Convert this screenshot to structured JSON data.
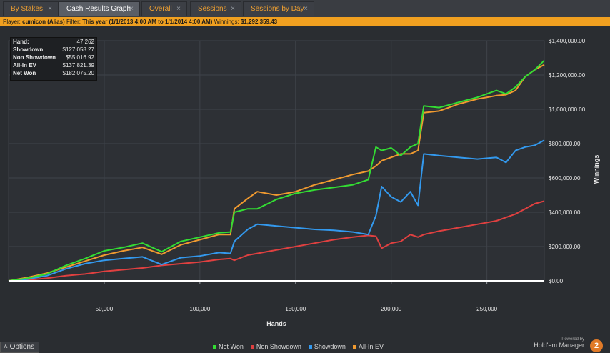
{
  "tabs": [
    {
      "label": "By Stakes",
      "close": "×"
    },
    {
      "label": "Cash Results Graph",
      "close": "×"
    },
    {
      "label": "Overall",
      "close": "×"
    },
    {
      "label": "Sessions",
      "close": "×"
    },
    {
      "label": "Sessions by Day",
      "close": "×"
    }
  ],
  "filter": {
    "player_label": "Player:",
    "player": "cumicon (Alias)",
    "filter_label": "Filter:",
    "filter": "This year (1/1/2013 4:00 AM to 1/1/2014 4:00 AM)",
    "winnings_label": "Winnings:",
    "winnings": "$1,292,359.43"
  },
  "stats": [
    {
      "label": "Hand:",
      "value": "47,262"
    },
    {
      "label": "Showdown",
      "value": "$127,058.27"
    },
    {
      "label": "Non Showdown",
      "value": "$55,016.92"
    },
    {
      "label": "All-In EV",
      "value": "$137,821.39"
    },
    {
      "label": "Net Won",
      "value": "$182,075.20"
    }
  ],
  "options_label": "Options",
  "brand": {
    "powered": "Powered by",
    "name": "Hold'em Manager",
    "badge": "2"
  },
  "colors": {
    "net_won": "#33dd33",
    "non_showdown": "#e04040",
    "showdown": "#3399ee",
    "allin_ev": "#f09a30",
    "accent": "#f0a020"
  },
  "chart_data": {
    "type": "line",
    "xlabel": "Hands",
    "ylabel": "Winnings",
    "xlim": [
      0,
      280000
    ],
    "ylim": [
      0,
      1400000
    ],
    "x_ticks": [
      50000,
      100000,
      150000,
      200000,
      250000
    ],
    "x_tick_labels": [
      "50,000",
      "100,000",
      "150,000",
      "200,000",
      "250,000"
    ],
    "y_ticks": [
      0,
      200000,
      400000,
      600000,
      800000,
      1000000,
      1200000,
      1400000
    ],
    "y_tick_labels": [
      "$0.00",
      "$200,000.00",
      "$400,000.00",
      "$600,000.00",
      "$800,000.00",
      "$1,000,000.00",
      "$1,200,000.00",
      "$1,400,000.00"
    ],
    "x": [
      0,
      10000,
      20000,
      30000,
      40000,
      50000,
      60000,
      70000,
      80000,
      90000,
      100000,
      110000,
      116000,
      118000,
      125000,
      130000,
      140000,
      150000,
      160000,
      170000,
      180000,
      188000,
      192000,
      195000,
      200000,
      205000,
      210000,
      214000,
      217000,
      225000,
      235000,
      245000,
      255000,
      260000,
      265000,
      270000,
      275000,
      280000
    ],
    "series": [
      {
        "name": "Net Won",
        "color": "#33dd33",
        "values": [
          0,
          15000,
          40000,
          90000,
          130000,
          175000,
          195000,
          220000,
          170000,
          230000,
          255000,
          280000,
          285000,
          400000,
          420000,
          420000,
          475000,
          510000,
          530000,
          545000,
          560000,
          590000,
          780000,
          760000,
          775000,
          730000,
          780000,
          800000,
          1020000,
          1010000,
          1040000,
          1070000,
          1110000,
          1090000,
          1130000,
          1190000,
          1230000,
          1285000
        ]
      },
      {
        "name": "Non Showdown",
        "color": "#e04040",
        "values": [
          0,
          5000,
          15000,
          30000,
          40000,
          55000,
          65000,
          75000,
          90000,
          100000,
          110000,
          125000,
          130000,
          120000,
          150000,
          160000,
          180000,
          200000,
          220000,
          240000,
          255000,
          265000,
          260000,
          190000,
          220000,
          230000,
          270000,
          255000,
          270000,
          290000,
          310000,
          330000,
          350000,
          370000,
          390000,
          420000,
          450000,
          465000
        ]
      },
      {
        "name": "Showdown",
        "color": "#3399ee",
        "values": [
          0,
          10000,
          30000,
          70000,
          100000,
          120000,
          130000,
          140000,
          95000,
          135000,
          145000,
          165000,
          160000,
          230000,
          300000,
          330000,
          320000,
          310000,
          300000,
          295000,
          285000,
          270000,
          380000,
          550000,
          490000,
          460000,
          520000,
          440000,
          740000,
          730000,
          720000,
          710000,
          720000,
          690000,
          760000,
          780000,
          790000,
          820000
        ]
      },
      {
        "name": "All-In EV",
        "color": "#f09a30",
        "values": [
          0,
          20000,
          45000,
          80000,
          115000,
          150000,
          175000,
          195000,
          155000,
          210000,
          240000,
          270000,
          270000,
          420000,
          480000,
          520000,
          500000,
          520000,
          560000,
          590000,
          620000,
          640000,
          670000,
          700000,
          720000,
          740000,
          740000,
          760000,
          980000,
          990000,
          1030000,
          1060000,
          1080000,
          1085000,
          1110000,
          1190000,
          1230000,
          1260000
        ]
      }
    ]
  }
}
